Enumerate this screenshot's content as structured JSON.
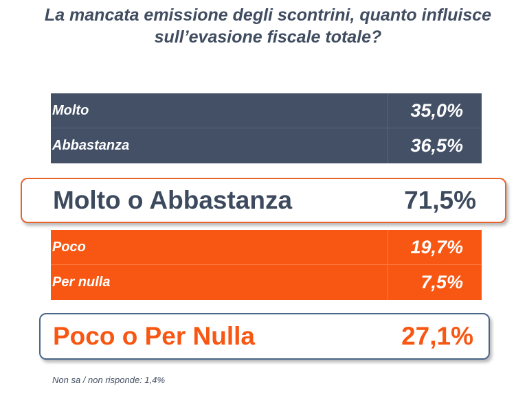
{
  "title": "La mancata emissione degli scontrini, quanto influisce sull’evasione fiscale totale?",
  "chart_data": {
    "type": "table",
    "title": "La mancata emissione degli scontrini, quanto influisce sull’evasione fiscale totale?",
    "unit": "%",
    "groups": [
      {
        "rows": [
          {
            "label": "Molto",
            "value": 35.0,
            "display": "35,0%"
          },
          {
            "label": "Abbastanza",
            "value": 36.5,
            "display": "36,5%"
          }
        ],
        "summary": {
          "label": "Molto o Abbastanza",
          "value": 71.5,
          "display": "71,5%"
        }
      },
      {
        "rows": [
          {
            "label": "Poco",
            "value": 19.7,
            "display": "19,7%"
          },
          {
            "label": "Per nulla",
            "value": 7.5,
            "display": "7,5%"
          }
        ],
        "summary": {
          "label": "Poco o Per Nulla",
          "value": 27.1,
          "display": "27,1%"
        }
      }
    ],
    "note": "Non sa / non risponde: 1,4%"
  },
  "colors": {
    "dark_row": "#435066",
    "orange_row": "#f75712",
    "summary1_border": "#e8622e",
    "summary2_border": "#4a6689"
  }
}
